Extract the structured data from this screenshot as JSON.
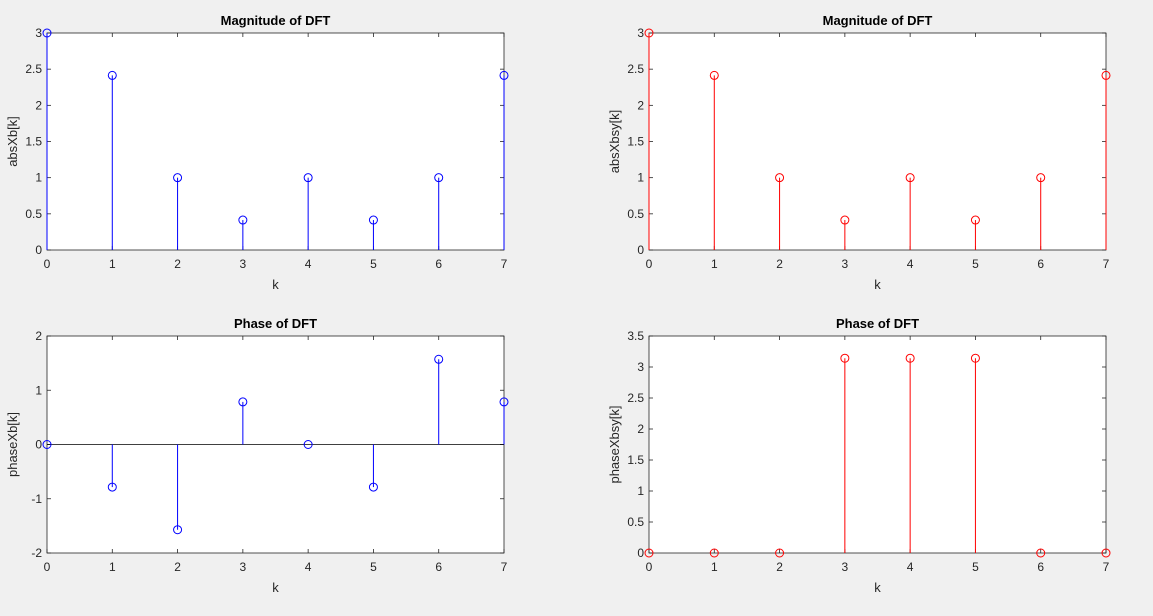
{
  "figure": {
    "background": "#f0f0f0",
    "axes_background": "#ffffff",
    "axes_color": "#262626"
  },
  "chart_data": [
    {
      "type": "stem",
      "title": "Magnitude of DFT",
      "xlabel": "k",
      "ylabel": "absXb[k]",
      "xlim": [
        0,
        7
      ],
      "ylim": [
        0,
        3
      ],
      "xticks": [
        0,
        1,
        2,
        3,
        4,
        5,
        6,
        7
      ],
      "yticks": [
        0,
        0.5,
        1,
        1.5,
        2,
        2.5,
        3
      ],
      "ytick_labels": [
        "0",
        "0.5",
        "1",
        "1.5",
        "2",
        "2.5",
        "3"
      ],
      "color": "#0000ff",
      "x": [
        0,
        1,
        2,
        3,
        4,
        5,
        6,
        7
      ],
      "values": [
        3,
        2.414,
        1,
        0.414,
        1,
        0.414,
        1,
        2.414
      ],
      "grid": false
    },
    {
      "type": "stem",
      "title": "Magnitude of DFT",
      "xlabel": "k",
      "ylabel": "absXbsy[k]",
      "xlim": [
        0,
        7
      ],
      "ylim": [
        0,
        3
      ],
      "xticks": [
        0,
        1,
        2,
        3,
        4,
        5,
        6,
        7
      ],
      "yticks": [
        0,
        0.5,
        1,
        1.5,
        2,
        2.5,
        3
      ],
      "ytick_labels": [
        "0",
        "0.5",
        "1",
        "1.5",
        "2",
        "2.5",
        "3"
      ],
      "color": "#ff0000",
      "x": [
        0,
        1,
        2,
        3,
        4,
        5,
        6,
        7
      ],
      "values": [
        3,
        2.414,
        1,
        0.414,
        1,
        0.414,
        1,
        2.414
      ],
      "grid": false
    },
    {
      "type": "stem",
      "title": "Phase of DFT",
      "xlabel": "k",
      "ylabel": "phaseXb[k]",
      "xlim": [
        0,
        7
      ],
      "ylim": [
        -2,
        2
      ],
      "xticks": [
        0,
        1,
        2,
        3,
        4,
        5,
        6,
        7
      ],
      "yticks": [
        -2,
        -1,
        0,
        1,
        2
      ],
      "ytick_labels": [
        "-2",
        "-1",
        "0",
        "1",
        "2"
      ],
      "color": "#0000ff",
      "x": [
        0,
        1,
        2,
        3,
        4,
        5,
        6,
        7
      ],
      "values": [
        0,
        -0.785,
        -1.571,
        0.785,
        0,
        -0.785,
        1.571,
        0.785
      ],
      "grid": false
    },
    {
      "type": "stem",
      "title": "Phase of DFT",
      "xlabel": "k",
      "ylabel": "phaseXbsy[k]",
      "xlim": [
        0,
        7
      ],
      "ylim": [
        0,
        3.5
      ],
      "xticks": [
        0,
        1,
        2,
        3,
        4,
        5,
        6,
        7
      ],
      "yticks": [
        0,
        0.5,
        1,
        1.5,
        2,
        2.5,
        3,
        3.5
      ],
      "ytick_labels": [
        "0",
        "0.5",
        "1",
        "1.5",
        "2",
        "2.5",
        "3",
        "3.5"
      ],
      "color": "#ff0000",
      "x": [
        0,
        1,
        2,
        3,
        4,
        5,
        6,
        7
      ],
      "values": [
        0,
        0,
        0,
        3.1416,
        3.1416,
        3.1416,
        0,
        0
      ],
      "grid": false
    }
  ]
}
